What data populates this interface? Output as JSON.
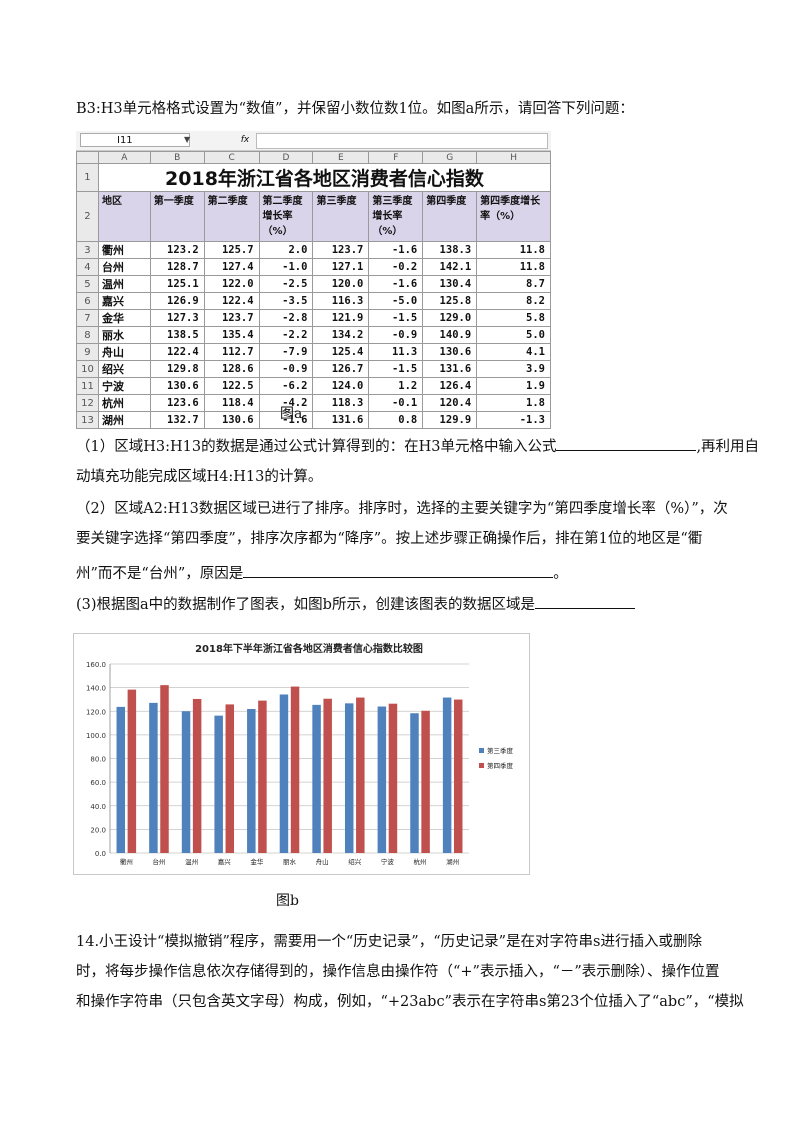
{
  "intro_text": "B3:H3单元格格式设置为“数值”，并保留小数位数1位。如图a所示，请回答下列问题：",
  "spreadsheet": {
    "name_box": "I11",
    "fx_label": "fx",
    "col_letters": [
      "A",
      "B",
      "C",
      "D",
      "E",
      "F",
      "G",
      "H"
    ],
    "title": "2018年浙江省各地区消费者信心指数",
    "headers": [
      "地区",
      "第一季度",
      "第二季度",
      "第二季度增长率（%）",
      "第三季度",
      "第三季度增长率（%）",
      "第四季度",
      "第四季度增长率（%）"
    ],
    "row_numbers": [
      "1",
      "2",
      "3",
      "4",
      "5",
      "6",
      "7",
      "8",
      "9",
      "10",
      "11",
      "12",
      "13"
    ],
    "rows": [
      [
        "衢州",
        "123.2",
        "125.7",
        "2.0",
        "123.7",
        "-1.6",
        "138.3",
        "11.8"
      ],
      [
        "台州",
        "128.7",
        "127.4",
        "-1.0",
        "127.1",
        "-0.2",
        "142.1",
        "11.8"
      ],
      [
        "温州",
        "125.1",
        "122.0",
        "-2.5",
        "120.0",
        "-1.6",
        "130.4",
        "8.7"
      ],
      [
        "嘉兴",
        "126.9",
        "122.4",
        "-3.5",
        "116.3",
        "-5.0",
        "125.8",
        "8.2"
      ],
      [
        "金华",
        "127.3",
        "123.7",
        "-2.8",
        "121.9",
        "-1.5",
        "129.0",
        "5.8"
      ],
      [
        "丽水",
        "138.5",
        "135.4",
        "-2.2",
        "134.2",
        "-0.9",
        "140.9",
        "5.0"
      ],
      [
        "舟山",
        "122.4",
        "112.7",
        "-7.9",
        "125.4",
        "11.3",
        "130.6",
        "4.1"
      ],
      [
        "绍兴",
        "129.8",
        "128.6",
        "-0.9",
        "126.7",
        "-1.5",
        "131.6",
        "3.9"
      ],
      [
        "宁波",
        "130.6",
        "122.5",
        "-6.2",
        "124.0",
        "1.2",
        "126.4",
        "1.9"
      ],
      [
        "杭州",
        "123.6",
        "118.4",
        "-4.2",
        "118.3",
        "-0.1",
        "120.4",
        "1.8"
      ],
      [
        "湖州",
        "132.7",
        "130.6",
        "-1.6",
        "131.6",
        "0.8",
        "129.9",
        "-1.3"
      ]
    ]
  },
  "caption_a": "图a",
  "q1": {
    "before": "（1）区域H3:H13的数据是通过公式计算得到的：在H3单元格中输入公式",
    "after": ",再利用自",
    "line2": "动填充功能完成区域H4:H13的计算。"
  },
  "q2": {
    "line1": "（2）区域A2:H13数据区域已进行了排序。排序时，选择的主要关键字为“第四季度增长率（%）”，次",
    "line2": "要关键字选择“第四季度”，排序次序都为“降序”。按上述步骤正确操作后，排在第1位的地区是“衢",
    "line3_before": "州”而不是“台州”，原因是",
    "line3_after": "。"
  },
  "q3": {
    "text": "(3)根据图a中的数据制作了图表，如图b所示，创建该图表的数据区域是"
  },
  "chart_data": {
    "type": "bar",
    "title": "2018年下半年浙江省各地区消费者信心指数比较图",
    "categories": [
      "衢州",
      "台州",
      "温州",
      "嘉兴",
      "金华",
      "丽水",
      "舟山",
      "绍兴",
      "宁波",
      "杭州",
      "湖州"
    ],
    "series": [
      {
        "name": "第三季度",
        "color": "#4f81bd",
        "values": [
          123.7,
          127.1,
          120.0,
          116.3,
          121.9,
          134.2,
          125.4,
          126.7,
          124.0,
          118.3,
          131.6
        ]
      },
      {
        "name": "第四季度",
        "color": "#c0504d",
        "values": [
          138.3,
          142.1,
          130.4,
          125.8,
          129.0,
          140.9,
          130.6,
          131.6,
          126.4,
          120.4,
          129.9
        ]
      }
    ],
    "ylim": [
      0,
      160
    ],
    "yticks": [
      "0.0",
      "20.0",
      "40.0",
      "60.0",
      "80.0",
      "100.0",
      "120.0",
      "140.0",
      "160.0"
    ],
    "grid": true,
    "legend_position": "right"
  },
  "caption_b": "图b",
  "q14": {
    "line1": "14.小王设计“模拟撤销”程序，需要用一个“历史记录”，“历史记录”是在对字符串s进行插入或删除",
    "line2": "时，将每步操作信息依次存储得到的，操作信息由操作符（“+”表示插入，“－”表示删除）、操作位置",
    "line3": "和操作字符串（只包含英文字母）构成，例如，“+23abc”表示在字符串s第23个位插入了“abc”，“模拟"
  }
}
